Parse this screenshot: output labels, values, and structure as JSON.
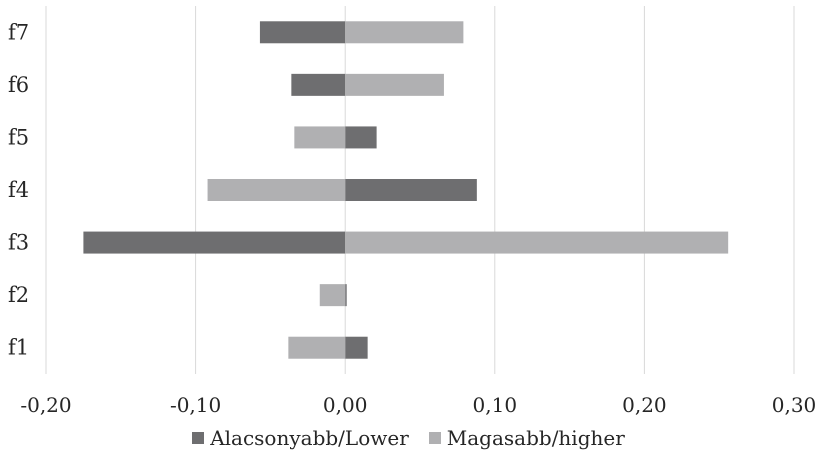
{
  "chart_data": {
    "type": "bar",
    "orientation": "horizontal",
    "categories": [
      "f1",
      "f2",
      "f3",
      "f4",
      "f5",
      "f6",
      "f7"
    ],
    "series": [
      {
        "name": "Alacsonyabb/Lower",
        "color": "#6e6e70",
        "values": [
          0.015,
          0.001,
          -0.175,
          0.088,
          0.021,
          -0.036,
          -0.057
        ]
      },
      {
        "name": "Magasabb/higher",
        "color": "#b0b0b2",
        "values": [
          -0.038,
          -0.017,
          0.256,
          -0.092,
          -0.034,
          0.066,
          0.079
        ]
      }
    ],
    "xlim": [
      -0.2,
      0.3
    ],
    "xticks": [
      "-0,20",
      "-0,10",
      "0,00",
      "0,10",
      "0,20",
      "0,30"
    ],
    "grid": true,
    "legend": "bottom",
    "title": "",
    "xlabel": "",
    "ylabel": ""
  }
}
